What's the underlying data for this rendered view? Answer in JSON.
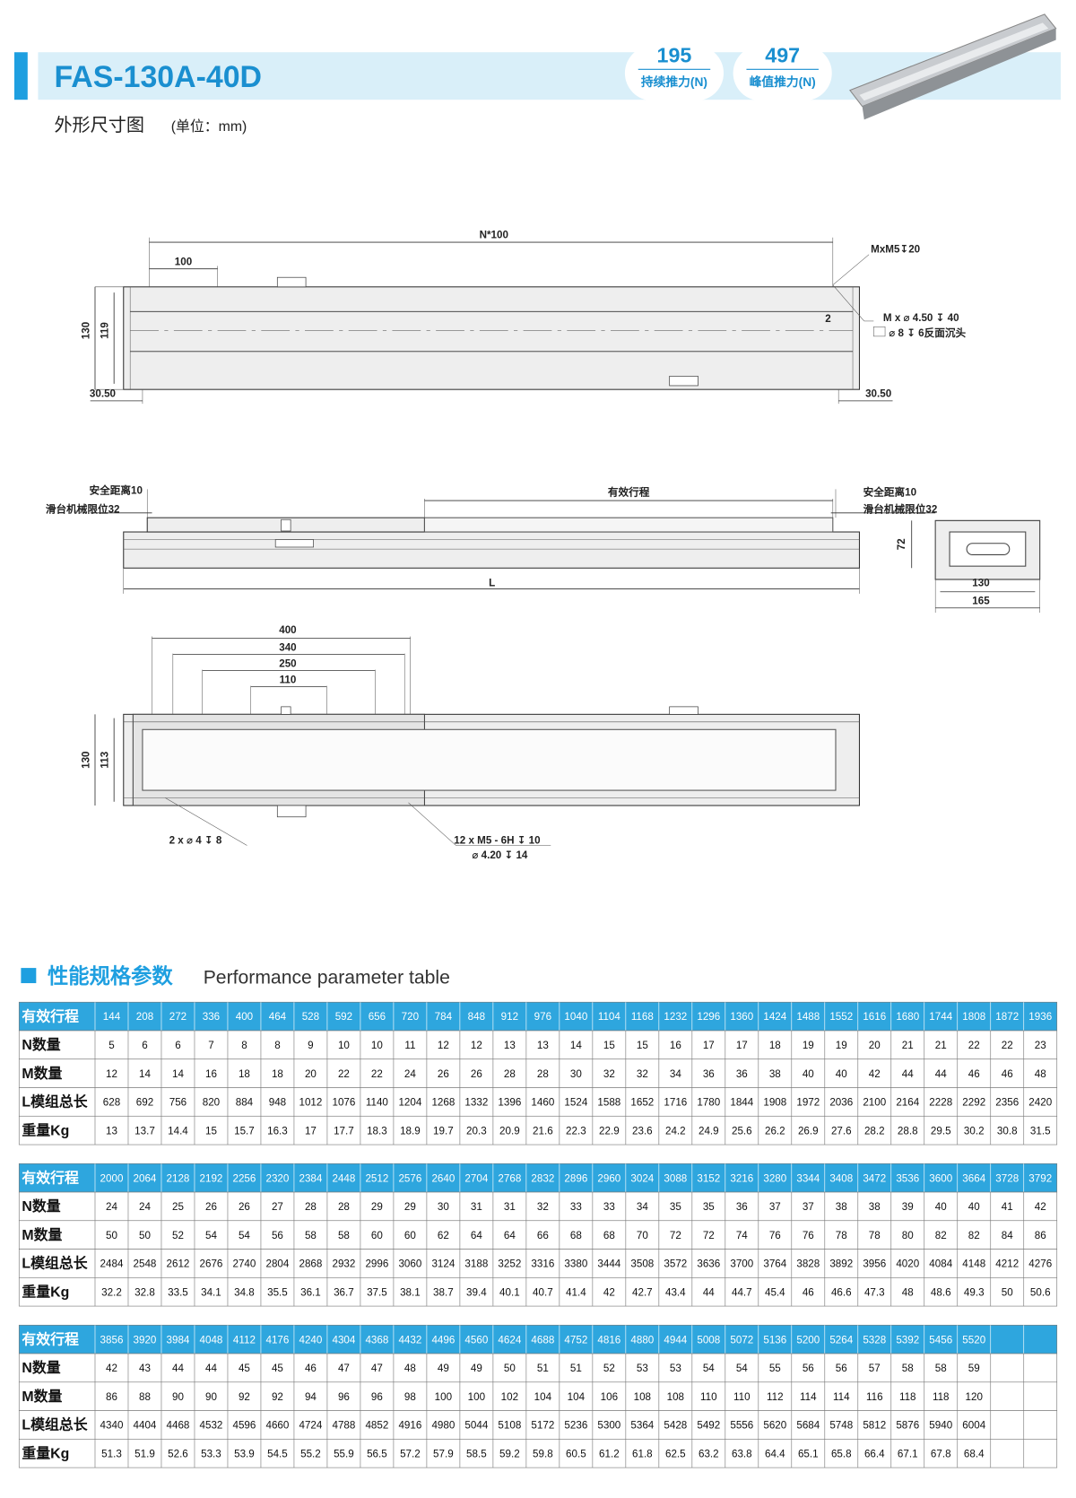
{
  "header": {
    "title": "FAS-130A-40D",
    "badges": [
      {
        "value": "195",
        "label": "持续推力(N)"
      },
      {
        "value": "497",
        "label": "峰值推力(N)"
      }
    ],
    "subtitle": "外形尺寸图",
    "unit": "(单位：mm)"
  },
  "drawing": {
    "top_view": {
      "pitch": "N*100",
      "first": "100",
      "tap": "MxM5↧20",
      "hole1": "M x ⌀ 4.50 ↧ 40",
      "hole2": "⌀ 8 ↧ 6反面沉头",
      "offset": "2",
      "height_total": "130",
      "height_inner": "119",
      "end_left": "30.50",
      "end_right": "30.50"
    },
    "side_view": {
      "safe_left": "安全距离10",
      "limit_left": "滑台机械限位32",
      "stroke": "有效行程",
      "safe_right": "安全距离10",
      "limit_right": "滑台机械限位32",
      "length": "L",
      "end_height": "72",
      "end_inner": "130",
      "end_width": "165"
    },
    "bottom_view": {
      "d400": "400",
      "d340": "340",
      "d250": "250",
      "d110": "110",
      "height_total": "130",
      "height_inner": "113",
      "pin": "2 x ⌀ 4 ↧ 8",
      "tap1": "12 x M5 - 6H ↧ 10",
      "tap2": "⌀ 4.20 ↧ 14"
    }
  },
  "section": {
    "title": "性能规格参数",
    "subtitle": "Performance parameter table"
  },
  "tables": [
    {
      "rows": [
        {
          "label": "有效行程",
          "values": [
            144,
            208,
            272,
            336,
            400,
            464,
            528,
            592,
            656,
            720,
            784,
            848,
            912,
            976,
            1040,
            1104,
            1168,
            1232,
            1296,
            1360,
            1424,
            1488,
            1552,
            1616,
            1680,
            1744,
            1808,
            1872,
            1936
          ]
        },
        {
          "label": "N数量",
          "values": [
            5,
            6,
            6,
            7,
            8,
            8,
            9,
            10,
            10,
            11,
            12,
            12,
            13,
            13,
            14,
            15,
            15,
            16,
            17,
            17,
            18,
            19,
            19,
            20,
            21,
            21,
            22,
            22,
            23
          ]
        },
        {
          "label": "M数量",
          "values": [
            12,
            14,
            14,
            16,
            18,
            18,
            20,
            22,
            22,
            24,
            26,
            26,
            28,
            28,
            30,
            32,
            32,
            34,
            36,
            36,
            38,
            40,
            40,
            42,
            44,
            44,
            46,
            46,
            48
          ]
        },
        {
          "label": "L模组总长",
          "values": [
            628,
            692,
            756,
            820,
            884,
            948,
            1012,
            1076,
            1140,
            1204,
            1268,
            1332,
            1396,
            1460,
            1524,
            1588,
            1652,
            1716,
            1780,
            1844,
            1908,
            1972,
            2036,
            2100,
            2164,
            2228,
            2292,
            2356,
            2420
          ]
        },
        {
          "label": "重量Kg",
          "values": [
            13,
            13.7,
            14.4,
            15,
            15.7,
            16.3,
            17,
            17.7,
            18.3,
            18.9,
            19.7,
            20.3,
            20.9,
            21.6,
            22.3,
            22.9,
            23.6,
            24.2,
            24.9,
            25.6,
            26.2,
            26.9,
            27.6,
            28.2,
            28.8,
            29.5,
            30.2,
            30.8,
            31.5
          ]
        }
      ]
    },
    {
      "rows": [
        {
          "label": "有效行程",
          "values": [
            2000,
            2064,
            2128,
            2192,
            2256,
            2320,
            2384,
            2448,
            2512,
            2576,
            2640,
            2704,
            2768,
            2832,
            2896,
            2960,
            3024,
            3088,
            3152,
            3216,
            3280,
            3344,
            3408,
            3472,
            3536,
            3600,
            3664,
            3728,
            3792
          ]
        },
        {
          "label": "N数量",
          "values": [
            24,
            24,
            25,
            26,
            26,
            27,
            28,
            28,
            29,
            29,
            30,
            31,
            31,
            32,
            33,
            33,
            34,
            35,
            35,
            36,
            37,
            37,
            38,
            38,
            39,
            40,
            40,
            41,
            42
          ]
        },
        {
          "label": "M数量",
          "values": [
            50,
            50,
            52,
            54,
            54,
            56,
            58,
            58,
            60,
            60,
            62,
            64,
            64,
            66,
            68,
            68,
            70,
            72,
            72,
            74,
            76,
            76,
            78,
            78,
            80,
            82,
            82,
            84,
            86
          ]
        },
        {
          "label": "L模组总长",
          "values": [
            2484,
            2548,
            2612,
            2676,
            2740,
            2804,
            2868,
            2932,
            2996,
            3060,
            3124,
            3188,
            3252,
            3316,
            3380,
            3444,
            3508,
            3572,
            3636,
            3700,
            3764,
            3828,
            3892,
            3956,
            4020,
            4084,
            4148,
            4212,
            4276
          ]
        },
        {
          "label": "重量Kg",
          "values": [
            32.2,
            32.8,
            33.5,
            34.1,
            34.8,
            35.5,
            36.1,
            36.7,
            37.5,
            38.1,
            38.7,
            39.4,
            40.1,
            40.7,
            41.4,
            42,
            42.7,
            43.4,
            44,
            44.7,
            45.4,
            46,
            46.6,
            47.3,
            48,
            48.6,
            49.3,
            50,
            50.6
          ]
        }
      ]
    },
    {
      "rows": [
        {
          "label": "有效行程",
          "values": [
            3856,
            3920,
            3984,
            4048,
            4112,
            4176,
            4240,
            4304,
            4368,
            4432,
            4496,
            4560,
            4624,
            4688,
            4752,
            4816,
            4880,
            4944,
            5008,
            5072,
            5136,
            5200,
            5264,
            5328,
            5392,
            5456,
            5520
          ]
        },
        {
          "label": "N数量",
          "values": [
            42,
            43,
            44,
            44,
            45,
            45,
            46,
            47,
            47,
            48,
            49,
            49,
            50,
            51,
            51,
            52,
            53,
            53,
            54,
            54,
            55,
            56,
            56,
            57,
            58,
            58,
            59
          ]
        },
        {
          "label": "M数量",
          "values": [
            86,
            88,
            90,
            90,
            92,
            92,
            94,
            96,
            96,
            98,
            100,
            100,
            102,
            104,
            104,
            106,
            108,
            108,
            110,
            110,
            112,
            114,
            114,
            116,
            118,
            118,
            120
          ]
        },
        {
          "label": "L模组总长",
          "values": [
            4340,
            4404,
            4468,
            4532,
            4596,
            4660,
            4724,
            4788,
            4852,
            4916,
            4980,
            5044,
            5108,
            5172,
            5236,
            5300,
            5364,
            5428,
            5492,
            5556,
            5620,
            5684,
            5748,
            5812,
            5876,
            5940,
            6004
          ]
        },
        {
          "label": "重量Kg",
          "values": [
            51.3,
            51.9,
            52.6,
            53.3,
            53.9,
            54.5,
            55.2,
            55.9,
            56.5,
            57.2,
            57.9,
            58.5,
            59.2,
            59.8,
            60.5,
            61.2,
            61.8,
            62.5,
            63.2,
            63.8,
            64.4,
            65.1,
            65.8,
            66.4,
            67.1,
            67.8,
            68.4
          ]
        }
      ]
    }
  ]
}
